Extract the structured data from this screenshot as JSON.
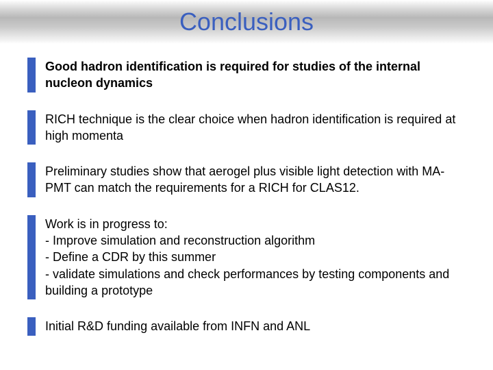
{
  "title": "Conclusions",
  "title_color": "#3a5fbf",
  "title_fontsize": 36,
  "bullet_bar_color": "#3a5fbf",
  "bullet_bar_width": 12,
  "body_fontsize": 18,
  "background": "#ffffff",
  "band_gradient": [
    "#ffffff",
    "#d8d8d8",
    "#b8b8b8",
    "#c8c8c8",
    "#f0f0f0",
    "#ffffff"
  ],
  "bullets": [
    {
      "bold": true,
      "text": "Good hadron identification is required for studies of the internal nucleon dynamics"
    },
    {
      "bold": false,
      "text": "RICH technique is the clear choice when hadron identification is required at high momenta"
    },
    {
      "bold": false,
      "text": "Preliminary studies show that aerogel plus visible light detection with MA-PMT can match the requirements for a RICH for CLAS12."
    },
    {
      "bold": false,
      "lead": "Work is in progress to:",
      "sub": [
        "- Improve simulation and reconstruction algorithm",
        "- Define a CDR by this summer",
        "- validate simulations and check performances by testing components and building a prototype"
      ]
    },
    {
      "bold": false,
      "text": "Initial R&D funding available from INFN and ANL"
    }
  ]
}
